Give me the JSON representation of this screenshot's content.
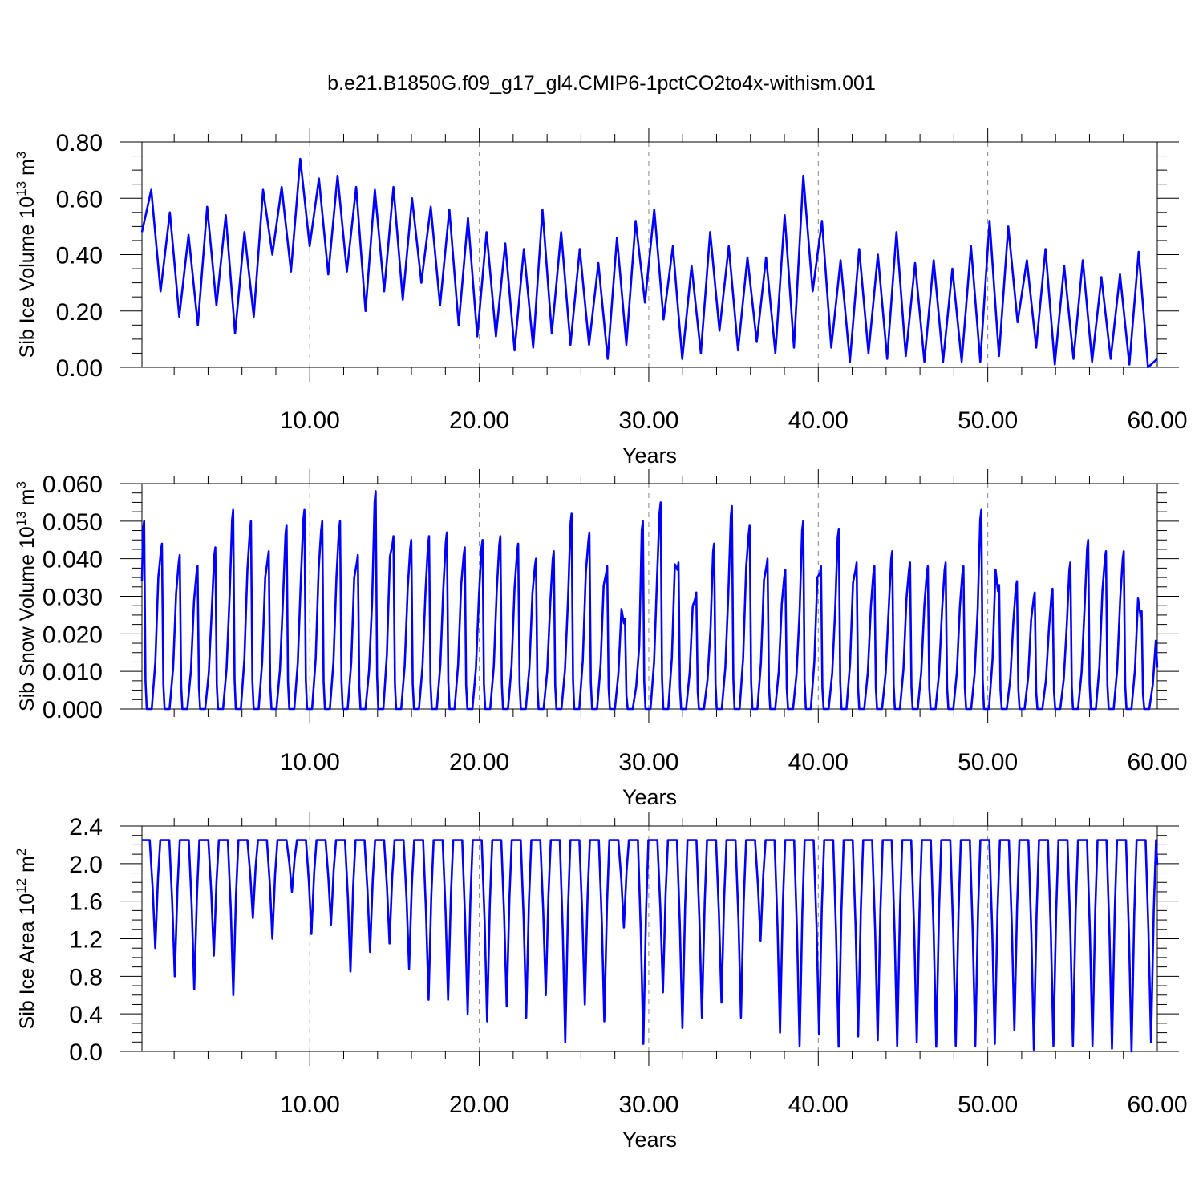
{
  "title": "b.e21.B1850G.f09_g17_gl4.CMIP6-1pctCO2to4x-withism.001",
  "colors": {
    "line": "#0000ff",
    "axis": "#000000",
    "grid": "#888888",
    "background": "#ffffff"
  },
  "chart_data": [
    {
      "type": "line",
      "title": "",
      "xlabel": "Years",
      "ylabel": {
        "text": "Sib Ice Volume 10",
        "exponent": "13",
        "unit": " m",
        "unit_exponent": "3"
      },
      "xlim": [
        0.1,
        60.0
      ],
      "ylim": [
        0.0,
        0.8
      ],
      "xticks": [
        10,
        20,
        30,
        40,
        50,
        60
      ],
      "xtick_labels": [
        "10.00",
        "20.00",
        "30.00",
        "40.00",
        "50.00",
        "60.00"
      ],
      "yticks": [
        0.0,
        0.2,
        0.4,
        0.6,
        0.8
      ],
      "ytick_labels": [
        "0.00",
        "0.20",
        "0.40",
        "0.60",
        "0.80"
      ],
      "grid": "dashed vertical at x ticks",
      "series": [
        {
          "peaks": [
            0.63,
            0.55,
            0.47,
            0.57,
            0.54,
            0.48,
            0.63,
            0.64,
            0.74,
            0.67,
            0.68,
            0.64,
            0.63,
            0.64,
            0.6,
            0.57,
            0.56,
            0.53,
            0.48,
            0.44,
            0.42,
            0.56,
            0.48,
            0.42,
            0.37,
            0.46,
            0.52,
            0.56,
            0.43,
            0.36,
            0.48,
            0.43,
            0.39,
            0.39,
            0.54,
            0.68,
            0.52,
            0.38,
            0.42,
            0.4,
            0.48,
            0.37,
            0.38,
            0.35,
            0.43,
            0.52,
            0.5,
            0.38,
            0.42,
            0.36,
            0.38,
            0.32,
            0.33,
            0.41
          ],
          "troughs": [
            0.48,
            0.27,
            0.18,
            0.15,
            0.22,
            0.12,
            0.18,
            0.4,
            0.34,
            0.43,
            0.33,
            0.34,
            0.2,
            0.27,
            0.24,
            0.3,
            0.22,
            0.15,
            0.11,
            0.11,
            0.06,
            0.07,
            0.12,
            0.08,
            0.08,
            0.03,
            0.08,
            0.23,
            0.17,
            0.03,
            0.05,
            0.13,
            0.06,
            0.09,
            0.05,
            0.07,
            0.27,
            0.07,
            0.02,
            0.05,
            0.03,
            0.04,
            0.02,
            0.02,
            0.02,
            0.02,
            0.04,
            0.16,
            0.07,
            0.01,
            0.03,
            0.02,
            0.03,
            0.01,
            0.0,
            0.03
          ]
        }
      ]
    },
    {
      "type": "line",
      "title": "",
      "xlabel": "Years",
      "ylabel": {
        "text": "Sib Snow Volume 10",
        "exponent": "13",
        "unit": " m",
        "unit_exponent": "3"
      },
      "xlim": [
        0.1,
        60.0
      ],
      "ylim": [
        0.0,
        0.06
      ],
      "xticks": [
        10,
        20,
        30,
        40,
        50,
        60
      ],
      "xtick_labels": [
        "10.00",
        "20.00",
        "30.00",
        "40.00",
        "50.00",
        "60.00"
      ],
      "yticks": [
        0.0,
        0.01,
        0.02,
        0.03,
        0.04,
        0.05,
        0.06
      ],
      "ytick_labels": [
        "0.000",
        "0.010",
        "0.020",
        "0.030",
        "0.040",
        "0.050",
        "0.060"
      ],
      "grid": "dashed vertical at x ticks",
      "series": [
        {
          "start": 0.034,
          "peaks": [
            0.05,
            0.044,
            0.041,
            0.038,
            0.043,
            0.053,
            0.05,
            0.042,
            0.049,
            0.053,
            0.05,
            0.05,
            0.041,
            0.058,
            0.046,
            0.045,
            0.046,
            0.047,
            0.043,
            0.045,
            0.046,
            0.044,
            0.04,
            0.042,
            0.052,
            0.047,
            0.038,
            0.024,
            0.05,
            0.055,
            0.039,
            0.031,
            0.044,
            0.054,
            0.049,
            0.04,
            0.037,
            0.05,
            0.038,
            0.048,
            0.039,
            0.038,
            0.042,
            0.039,
            0.038,
            0.039,
            0.038,
            0.053,
            0.033,
            0.034,
            0.031,
            0.032,
            0.039,
            0.045,
            0.042,
            0.042,
            0.026
          ],
          "end": 0.011
        }
      ]
    },
    {
      "type": "line",
      "title": "",
      "xlabel": "Years",
      "ylabel": {
        "text": "Sib Ice Area 10",
        "exponent": "12",
        "unit": " m",
        "unit_exponent": "2"
      },
      "xlim": [
        0.1,
        60.0
      ],
      "ylim": [
        0.0,
        2.4
      ],
      "xticks": [
        10,
        20,
        30,
        40,
        50,
        60
      ],
      "xtick_labels": [
        "10.00",
        "20.00",
        "30.00",
        "40.00",
        "50.00",
        "60.00"
      ],
      "yticks": [
        0.0,
        0.4,
        0.8,
        1.2,
        1.6,
        2.0,
        2.4
      ],
      "ytick_labels": [
        "0.0",
        "0.4",
        "0.8",
        "1.2",
        "1.6",
        "2.0",
        "2.4"
      ],
      "grid": "dashed vertical at x ticks",
      "series": [
        {
          "plateau": 2.25,
          "troughs": [
            1.1,
            0.8,
            0.66,
            1.02,
            0.6,
            1.42,
            1.2,
            1.7,
            1.25,
            1.35,
            0.85,
            1.06,
            1.15,
            0.88,
            0.55,
            0.55,
            0.4,
            0.32,
            0.48,
            0.36,
            0.6,
            0.1,
            0.5,
            0.32,
            1.32,
            0.08,
            0.63,
            0.25,
            0.36,
            0.52,
            0.36,
            1.18,
            0.2,
            0.06,
            0.18,
            0.05,
            0.16,
            0.12,
            0.06,
            0.1,
            0.05,
            0.06,
            0.06,
            0.08,
            0.23,
            0.02,
            0.06,
            0.06,
            0.06,
            0.03,
            0.0,
            0.1
          ]
        }
      ]
    }
  ]
}
